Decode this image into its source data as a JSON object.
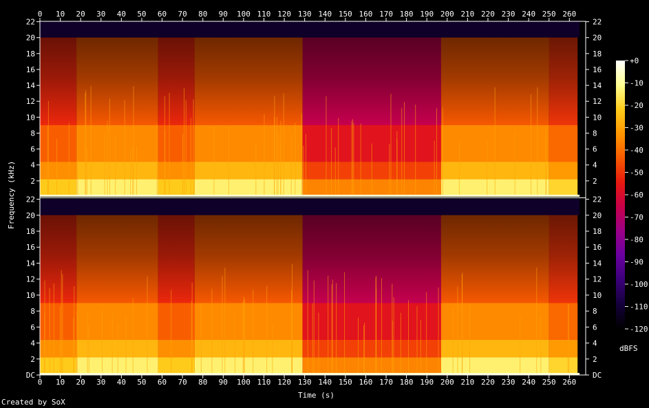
{
  "chart_data": {
    "type": "heatmap",
    "kind": "spectrogram",
    "xlabel": "Time (s)",
    "ylabel": "Frequency (kHz)",
    "xlim": [
      0,
      268
    ],
    "x_ticks": [
      0,
      10,
      20,
      30,
      40,
      50,
      60,
      70,
      80,
      90,
      100,
      110,
      120,
      130,
      140,
      150,
      160,
      170,
      180,
      190,
      200,
      210,
      220,
      230,
      240,
      250,
      260
    ],
    "ylim_khz": [
      0,
      22.05
    ],
    "y_ticks": [
      "DC",
      "2",
      "4",
      "6",
      "8",
      "10",
      "12",
      "14",
      "16",
      "18",
      "20",
      "22"
    ],
    "channels": 2,
    "colorbar": {
      "label": "dBFS",
      "range": [
        -120,
        0
      ],
      "ticks": [
        "+0",
        "-10",
        "-20",
        "-30",
        "-40",
        "-50",
        "-60",
        "-70",
        "-80",
        "-90",
        "-100",
        "-110",
        "-120"
      ],
      "colors": [
        "#000000",
        "#14003a",
        "#3a007a",
        "#6a00a0",
        "#9a0088",
        "#c8004a",
        "#e8180f",
        "#f85a00",
        "#ff9600",
        "#ffcc1a",
        "#ffff90",
        "#ffffff"
      ]
    },
    "sections": [
      {
        "start": 0,
        "end": 18,
        "level_db": -52
      },
      {
        "start": 18,
        "end": 58,
        "level_db": -44
      },
      {
        "start": 58,
        "end": 76,
        "level_db": -52
      },
      {
        "start": 76,
        "end": 129,
        "level_db": -44
      },
      {
        "start": 129,
        "end": 197,
        "level_db": -66
      },
      {
        "start": 197,
        "end": 250,
        "level_db": -44
      },
      {
        "start": 250,
        "end": 264,
        "level_db": -50
      }
    ],
    "spectral_cutoff_khz": 20,
    "signal_end_s": 265
  },
  "credit": "Created by SoX"
}
